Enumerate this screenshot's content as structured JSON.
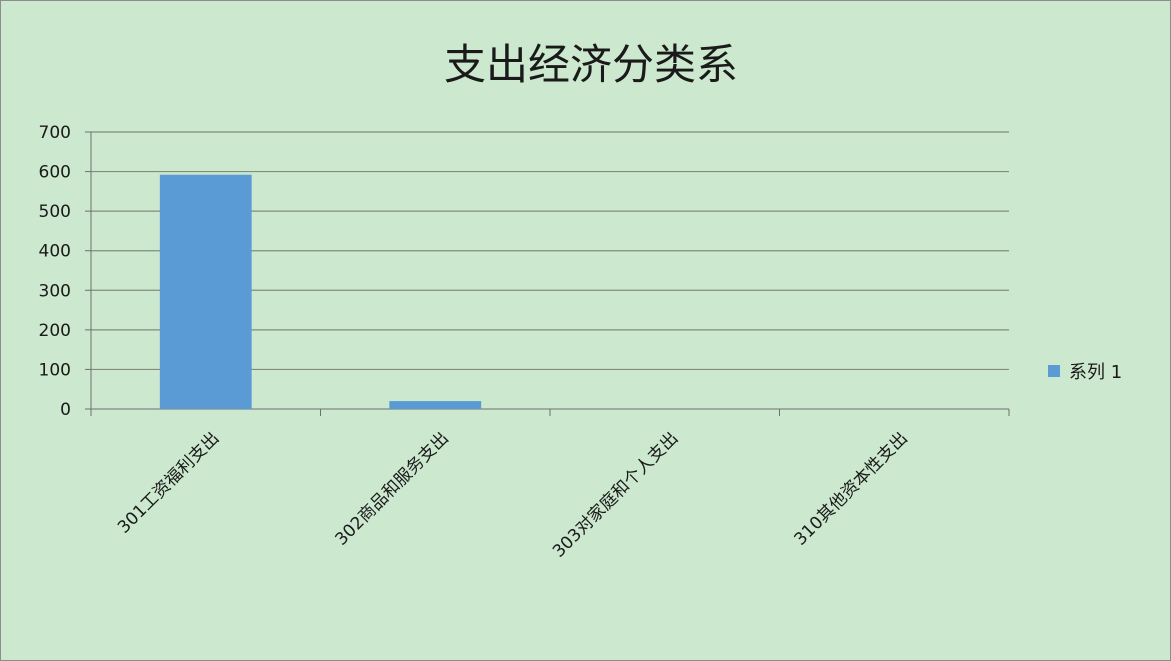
{
  "chart_data": {
    "type": "bar",
    "title": "支出经济分类系",
    "categories": [
      "301工资福利支出",
      "302商品和服务支出",
      "303对家庭和个人支出",
      "310其他资本性支出"
    ],
    "series": [
      {
        "name": "系列 1",
        "values": [
          592,
          20,
          0,
          0
        ],
        "color": "#5b9bd5"
      }
    ],
    "ylim": [
      0,
      700
    ],
    "yticks": [
      "0",
      "100",
      "200",
      "300",
      "400",
      "500",
      "600",
      "700"
    ],
    "xlabel": "",
    "ylabel": "",
    "grid": true,
    "legend_position": "right",
    "background_color": "#cce8cf",
    "gridline_color": "#7f8c7f"
  }
}
